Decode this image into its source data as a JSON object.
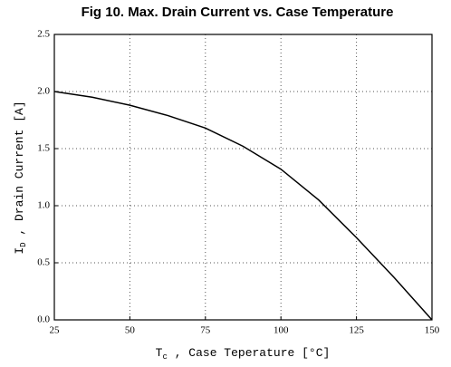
{
  "chart_data": {
    "type": "line",
    "title": "Fig 10.  Max. Drain Current vs. Case Temperature",
    "x_label": {
      "symbol": "T",
      "subscript": "c",
      "text": " , Case Teperature  [°C]"
    },
    "y_label": {
      "symbol": "I",
      "subscript": "D",
      "text": " ,  Drain Current   [A]"
    },
    "x": [
      25,
      37.5,
      50,
      62.5,
      75,
      87.5,
      100,
      112.5,
      125,
      137.5,
      150
    ],
    "series": [
      {
        "name": "Max. Drain Current",
        "color": "#000000",
        "values": [
          2.0,
          1.95,
          1.88,
          1.79,
          1.68,
          1.52,
          1.32,
          1.05,
          0.72,
          0.37,
          0.0
        ]
      }
    ],
    "xlim": [
      25,
      150
    ],
    "xticks": [
      25,
      50,
      75,
      100,
      125,
      150
    ],
    "ylim": [
      0,
      2.5
    ],
    "yticks": [
      {
        "value": 0,
        "label": "0.0"
      },
      {
        "value": 0.5,
        "label": "0.5"
      },
      {
        "value": 1,
        "label": "1.0"
      },
      {
        "value": 1.5,
        "label": "1.5"
      },
      {
        "value": 2,
        "label": "2.0"
      },
      {
        "value": 2.5,
        "label": "2.5"
      }
    ],
    "grid": true
  }
}
